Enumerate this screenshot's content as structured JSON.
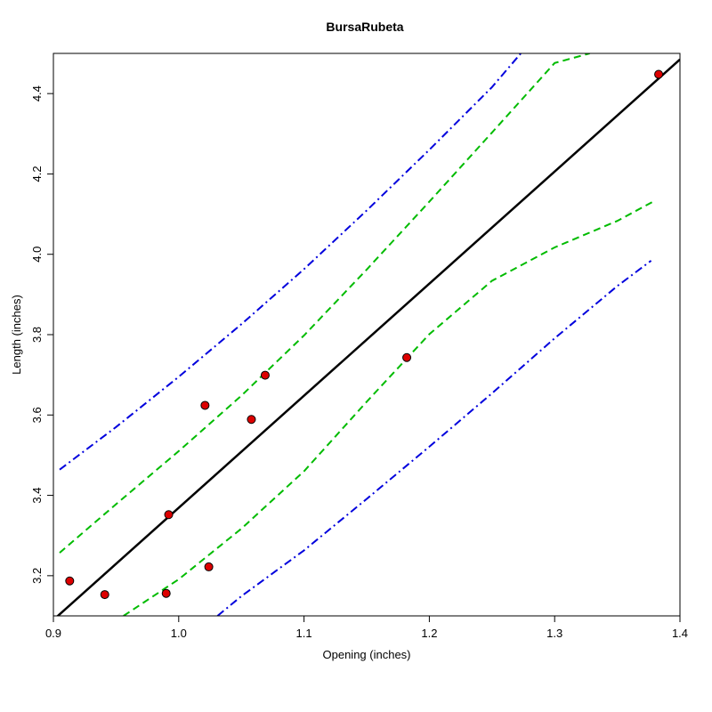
{
  "chart_data": {
    "type": "scatter",
    "title": "BursaRubeta",
    "xlabel": "Opening (inches)",
    "ylabel": "Length (inches)",
    "xlim": [
      0.9,
      1.4
    ],
    "ylim": [
      3.1,
      4.5
    ],
    "grid": false,
    "x_ticks": [
      0.9,
      1.0,
      1.1,
      1.2,
      1.3,
      1.4
    ],
    "x_tick_labels": [
      "0.9",
      "1.0",
      "1.1",
      "1.2",
      "1.3",
      "1.4"
    ],
    "y_ticks": [
      3.2,
      3.4,
      3.6,
      3.8,
      4.0,
      4.2,
      4.4
    ],
    "y_tick_labels": [
      "3.2",
      "3.4",
      "3.6",
      "3.8",
      "4.0",
      "4.2",
      "4.4"
    ],
    "points": {
      "name": "observations",
      "color": "#dd0000",
      "x": [
        0.913,
        0.941,
        0.99,
        0.992,
        1.021,
        1.024,
        1.058,
        1.069,
        1.182,
        1.383
      ],
      "y": [
        3.187,
        3.153,
        3.156,
        3.352,
        3.624,
        3.222,
        3.589,
        3.699,
        3.743,
        4.448
      ]
    },
    "regression_line": {
      "name": "fitted line",
      "color": "#000000",
      "style": "solid",
      "x": [
        0.9,
        1.4
      ],
      "y": [
        3.09,
        4.485
      ]
    },
    "confidence_bands": [
      {
        "name": "confidence-upper",
        "color": "#00bb00",
        "style": "dashed",
        "x": [
          0.905,
          0.95,
          1.0,
          1.05,
          1.1,
          1.15,
          1.2,
          1.25,
          1.3,
          1.328
        ],
        "y": [
          3.257,
          3.378,
          3.51,
          3.648,
          3.798,
          3.962,
          4.131,
          4.303,
          4.476,
          4.5
        ]
      },
      {
        "name": "confidence-lower",
        "color": "#00bb00",
        "style": "dashed",
        "x": [
          0.956,
          1.0,
          1.05,
          1.1,
          1.15,
          1.2,
          1.25,
          1.3,
          1.35,
          1.378
        ],
        "y": [
          3.1,
          3.191,
          3.317,
          3.46,
          3.633,
          3.801,
          3.934,
          4.017,
          4.083,
          4.13
        ]
      }
    ],
    "prediction_bands": [
      {
        "name": "prediction-upper",
        "color": "#0000dd",
        "style": "dash-dot",
        "x": [
          0.905,
          0.95,
          1.0,
          1.05,
          1.1,
          1.15,
          1.2,
          1.25,
          1.273
        ],
        "y": [
          3.464,
          3.57,
          3.695,
          3.826,
          3.963,
          4.109,
          4.26,
          4.416,
          4.5
        ]
      },
      {
        "name": "prediction-lower",
        "color": "#0000dd",
        "style": "dash-dot",
        "x": [
          1.031,
          1.05,
          1.1,
          1.15,
          1.2,
          1.25,
          1.3,
          1.35,
          1.377
        ],
        "y": [
          3.1,
          3.149,
          3.263,
          3.391,
          3.521,
          3.654,
          3.791,
          3.921,
          3.984
        ]
      }
    ]
  }
}
